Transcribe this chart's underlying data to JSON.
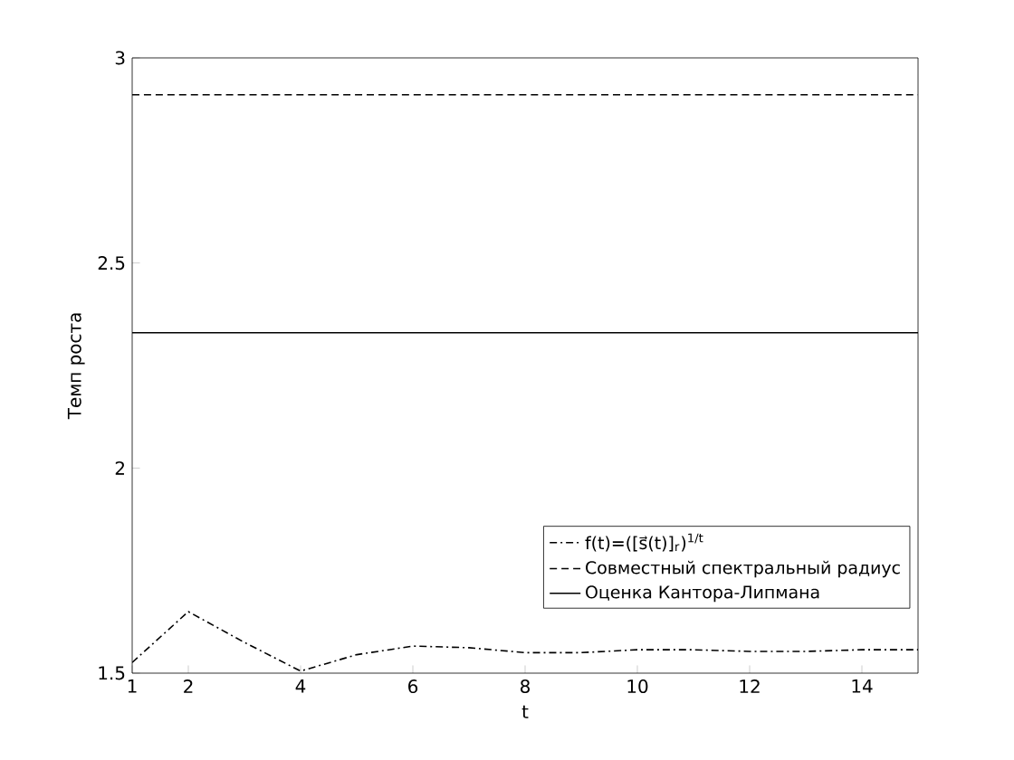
{
  "chart_data": {
    "type": "line",
    "xlabel": "t",
    "ylabel": "Темп роста",
    "xlim": [
      1,
      15
    ],
    "xticks": [
      1,
      2,
      4,
      6,
      8,
      10,
      12,
      14
    ],
    "ylim": [
      1.5,
      3
    ],
    "yticks": [
      1.5,
      2,
      2.5,
      3
    ],
    "legend": "bottom right",
    "grid": false,
    "marker": "none",
    "series": [
      {
        "name": "f(t)=([s⃗(t)]$_{r}$)$^{1/t}$",
        "color": "#000000",
        "line_style": "dashdot",
        "x": [
          1,
          2,
          3,
          4,
          5,
          6,
          7,
          8,
          9,
          10,
          11,
          12,
          13,
          14,
          15
        ],
        "values": [
          1.526,
          1.65,
          1.575,
          1.505,
          1.545,
          1.566,
          1.562,
          1.55,
          1.55,
          1.557,
          1.557,
          1.553,
          1.553,
          1.557,
          1.557
        ]
      },
      {
        "name": "Совместный спектральный радиус",
        "color": "#000000",
        "line_style": "dashed",
        "x": [
          1,
          15
        ],
        "values": [
          2.91,
          2.91
        ]
      },
      {
        "name": "Оценка Кантора-Липмана",
        "color": "#000000",
        "line_style": "solid",
        "x": [
          1,
          15
        ],
        "values": [
          2.33,
          2.33
        ]
      }
    ]
  }
}
